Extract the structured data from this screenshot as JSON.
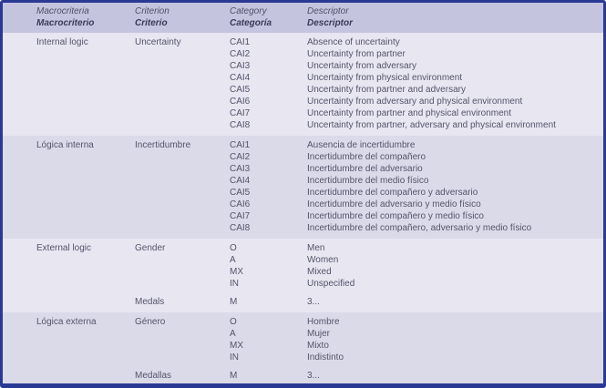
{
  "header": {
    "en": {
      "macrocriteria": "Macrocriteria",
      "criterion": "Criterion",
      "category": "Category",
      "descriptor": "Descriptor"
    },
    "es": {
      "macrocriteria": "Macrocriterio",
      "criterion": "Criterio",
      "category": "Categoría",
      "descriptor": "Descriptor"
    }
  },
  "sections": [
    {
      "macrocriteria": "Internal logic",
      "groups": [
        {
          "criterion": "Uncertainty",
          "rows": [
            {
              "category": "CAI1",
              "descriptor": "Absence of uncertainty"
            },
            {
              "category": "CAI2",
              "descriptor": "Uncertainty from partner"
            },
            {
              "category": "CAI3",
              "descriptor": "Uncertainty from adversary"
            },
            {
              "category": "CAI4",
              "descriptor": "Uncertainty from physical environment"
            },
            {
              "category": "CAI5",
              "descriptor": "Uncertainty from partner and adversary"
            },
            {
              "category": "CAI6",
              "descriptor": "Uncertainty from adversary and physical environment"
            },
            {
              "category": "CAI7",
              "descriptor": "Uncertainty from partner and physical environment"
            },
            {
              "category": "CAI8",
              "descriptor": "Uncertainty from partner, adversary and physical environment"
            }
          ]
        }
      ]
    },
    {
      "macrocriteria": "Lógica interna",
      "groups": [
        {
          "criterion": "Incertidumbre",
          "rows": [
            {
              "category": "CAI1",
              "descriptor": "Ausencia de incertidumbre"
            },
            {
              "category": "CAI2",
              "descriptor": "Incertidumbre del compañero"
            },
            {
              "category": "CAI3",
              "descriptor": "Incertidumbre del adversario"
            },
            {
              "category": "CAI4",
              "descriptor": "Incertidumbre del medio físico"
            },
            {
              "category": "CAI5",
              "descriptor": "Incertidumbre del compañero y adversario"
            },
            {
              "category": "CAI6",
              "descriptor": "Incertidumbre del adversario y medio físico"
            },
            {
              "category": "CAI7",
              "descriptor": "Incertidumbre del compañero y medio físico"
            },
            {
              "category": "CAI8",
              "descriptor": "Incertidumbre del compañero, adversario y medio físico"
            }
          ]
        }
      ]
    },
    {
      "macrocriteria": "External logic",
      "groups": [
        {
          "criterion": "Gender",
          "rows": [
            {
              "category": "O",
              "descriptor": "Men"
            },
            {
              "category": "A",
              "descriptor": "Women"
            },
            {
              "category": "MX",
              "descriptor": "Mixed"
            },
            {
              "category": "IN",
              "descriptor": "Unspecified"
            }
          ]
        },
        {
          "criterion": "Medals",
          "rows": [
            {
              "category": "M",
              "descriptor": "3..."
            }
          ]
        }
      ]
    },
    {
      "macrocriteria": "Lógica externa",
      "groups": [
        {
          "criterion": "Género",
          "rows": [
            {
              "category": "O",
              "descriptor": "Hombre"
            },
            {
              "category": "A",
              "descriptor": "Mujer"
            },
            {
              "category": "MX",
              "descriptor": "Mixto"
            },
            {
              "category": "IN",
              "descriptor": "Indistinto"
            }
          ]
        },
        {
          "criterion": "Medallas",
          "rows": [
            {
              "category": "M",
              "descriptor": "3..."
            }
          ]
        }
      ]
    }
  ],
  "colors": {
    "border": "#2a3a94",
    "header_bg": "#c5c4df",
    "section_light_bg": "#e7e6f1",
    "section_dark_bg": "#dbdae9",
    "text": "#55556a"
  }
}
